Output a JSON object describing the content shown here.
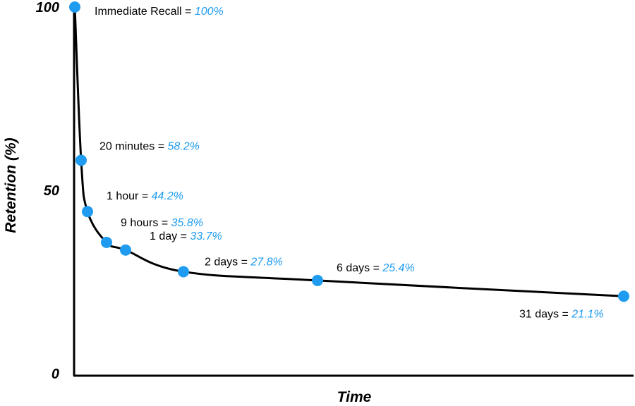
{
  "chart_data": {
    "type": "line",
    "title": "",
    "xlabel": "Time",
    "ylabel": "Retention (%)",
    "ylim": [
      0,
      100
    ],
    "yticks": [
      "0",
      "50",
      "100"
    ],
    "grid": false,
    "colors": {
      "points": "#1f9cf0",
      "line": "#000000",
      "values": "#1f9cf0"
    },
    "points": [
      {
        "name": "Immediate Recall",
        "sep": " = ",
        "value_label": "100%",
        "y": 100
      },
      {
        "name": "20 minutes",
        "sep": " = ",
        "value_label": "58.2%",
        "y": 58.2
      },
      {
        "name": "1 hour",
        "sep": " = ",
        "value_label": "44.2%",
        "y": 44.2
      },
      {
        "name": "9 hours",
        "sep": " = ",
        "value_label": "35.8%",
        "y": 35.8
      },
      {
        "name": "1 day",
        "sep": " = ",
        "value_label": "33.7%",
        "y": 33.7
      },
      {
        "name": "2 days",
        "sep": " = ",
        "value_label": "27.8%",
        "y": 27.8
      },
      {
        "name": "6 days",
        "sep": " = ",
        "value_label": "25.4%",
        "y": 25.4
      },
      {
        "name": "31 days",
        "sep": " = ",
        "value_label": "21.1%",
        "y": 21.1
      }
    ]
  }
}
